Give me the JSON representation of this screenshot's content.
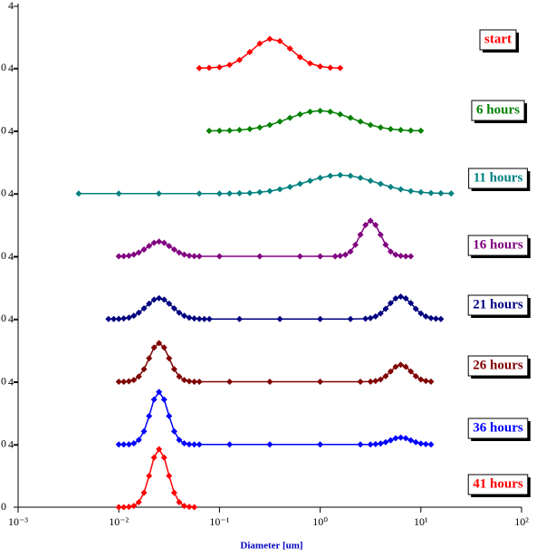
{
  "chart_data": {
    "type": "line",
    "xlabel": "Diameter [um]",
    "xscale": "log",
    "xlim": [
      0.001,
      100
    ],
    "xticks": [
      {
        "value": 0.001,
        "label": "10⁻³"
      },
      {
        "value": 0.01,
        "label": "10⁻²"
      },
      {
        "value": 0.1,
        "label": "10⁻¹"
      },
      {
        "value": 1,
        "label": "10⁰"
      },
      {
        "value": 10,
        "label": "10¹"
      },
      {
        "value": 100,
        "label": "10²"
      }
    ],
    "series": [
      {
        "name": "start",
        "color": "#ff0000",
        "ylim": [
          0,
          4
        ],
        "yticks": [
          0,
          4
        ],
        "x": [
          0.063,
          0.079,
          0.1,
          0.126,
          0.158,
          0.2,
          0.251,
          0.316,
          0.398,
          0.501,
          0.631,
          0.794,
          1,
          1.26,
          1.58
        ],
        "values": [
          0.0,
          0.02,
          0.06,
          0.21,
          0.53,
          1.04,
          1.59,
          1.89,
          1.75,
          1.27,
          0.71,
          0.31,
          0.11,
          0.03,
          0.01
        ]
      },
      {
        "name": "6 hours",
        "color": "#008000",
        "ylim": [
          0,
          4
        ],
        "yticks": [
          0,
          4
        ],
        "x": [
          0.079,
          0.1,
          0.126,
          0.158,
          0.2,
          0.251,
          0.316,
          0.398,
          0.501,
          0.631,
          0.794,
          1,
          1.26,
          1.58,
          2,
          2.51,
          3.16,
          3.98,
          5.01,
          6.31,
          7.94,
          10
        ],
        "values": [
          0.0,
          0.01,
          0.02,
          0.06,
          0.12,
          0.22,
          0.38,
          0.6,
          0.84,
          1.07,
          1.24,
          1.3,
          1.24,
          1.07,
          0.84,
          0.6,
          0.38,
          0.22,
          0.12,
          0.06,
          0.02,
          0.01
        ]
      },
      {
        "name": "11 hours",
        "color": "#008080",
        "ylim": [
          0,
          4
        ],
        "yticks": [
          0,
          4
        ],
        "x": [
          0.004,
          0.01,
          0.025,
          0.063,
          0.1,
          0.126,
          0.158,
          0.2,
          0.251,
          0.316,
          0.398,
          0.501,
          0.631,
          0.794,
          1,
          1.26,
          1.58,
          2,
          2.51,
          3.16,
          3.98,
          5.01,
          6.31,
          7.94,
          10,
          12.6,
          15.8,
          20
        ],
        "values": [
          0.0,
          0.0,
          0.0,
          0.0,
          0.0,
          0.01,
          0.02,
          0.04,
          0.09,
          0.16,
          0.28,
          0.43,
          0.63,
          0.83,
          1.02,
          1.15,
          1.2,
          1.15,
          1.02,
          0.83,
          0.63,
          0.43,
          0.28,
          0.16,
          0.09,
          0.04,
          0.02,
          0.01
        ]
      },
      {
        "name": "16 hours",
        "color": "#800080",
        "ylim": [
          0,
          4
        ],
        "yticks": [
          0,
          4
        ],
        "x": [
          0.01,
          0.0112,
          0.0126,
          0.0141,
          0.0158,
          0.0178,
          0.02,
          0.0224,
          0.0251,
          0.0282,
          0.0316,
          0.0355,
          0.0398,
          0.0447,
          0.0501,
          0.0562,
          0.0631,
          0.1,
          0.251,
          0.631,
          1,
          1.41,
          1.58,
          1.78,
          2.0,
          2.24,
          2.51,
          2.82,
          3.16,
          3.55,
          3.98,
          4.47,
          5.01,
          5.62,
          6.31,
          7.08,
          7.94
        ],
        "values": [
          0.0,
          0.01,
          0.04,
          0.11,
          0.24,
          0.44,
          0.67,
          0.87,
          0.95,
          0.87,
          0.67,
          0.44,
          0.24,
          0.11,
          0.04,
          0.01,
          0.0,
          0.0,
          0.0,
          0.0,
          0.0,
          0.0,
          0.03,
          0.1,
          0.31,
          0.75,
          1.4,
          2.03,
          2.3,
          2.03,
          1.4,
          0.75,
          0.31,
          0.1,
          0.03,
          0.0,
          0.0
        ]
      },
      {
        "name": "21 hours",
        "color": "#000080",
        "ylim": [
          0,
          4
        ],
        "yticks": [
          0,
          4
        ],
        "x": [
          0.0079,
          0.0089,
          0.01,
          0.0112,
          0.0126,
          0.0141,
          0.0158,
          0.0178,
          0.02,
          0.0224,
          0.0251,
          0.0282,
          0.0316,
          0.0355,
          0.0398,
          0.0447,
          0.0501,
          0.0562,
          0.0631,
          0.0708,
          0.0794,
          0.158,
          0.398,
          1,
          2.0,
          2.82,
          3.16,
          3.55,
          3.98,
          4.47,
          5.01,
          5.62,
          6.31,
          7.08,
          7.94,
          8.91,
          10,
          11.2,
          12.6,
          14.1,
          15.8
        ],
        "values": [
          0.0,
          0.0,
          0.01,
          0.04,
          0.09,
          0.21,
          0.41,
          0.69,
          1.0,
          1.25,
          1.35,
          1.25,
          1.0,
          0.69,
          0.41,
          0.21,
          0.09,
          0.04,
          0.01,
          0.0,
          0.0,
          0.0,
          0.0,
          0.0,
          0.0,
          0.02,
          0.06,
          0.17,
          0.36,
          0.66,
          1.03,
          1.33,
          1.45,
          1.33,
          1.03,
          0.66,
          0.36,
          0.17,
          0.06,
          0.02,
          0.0
        ]
      },
      {
        "name": "26 hours",
        "color": "#800000",
        "ylim": [
          0,
          4
        ],
        "yticks": [
          0,
          4
        ],
        "x": [
          0.01,
          0.0112,
          0.0126,
          0.0141,
          0.0158,
          0.0178,
          0.02,
          0.0224,
          0.0251,
          0.0282,
          0.0316,
          0.0355,
          0.0398,
          0.0447,
          0.0501,
          0.0562,
          0.0631,
          0.126,
          0.316,
          1,
          2.51,
          3.16,
          3.55,
          3.98,
          4.47,
          5.01,
          5.62,
          6.31,
          7.08,
          7.94,
          8.91,
          10,
          11.2,
          12.6
        ],
        "values": [
          0.0,
          0.0,
          0.03,
          0.11,
          0.34,
          0.81,
          1.52,
          2.21,
          2.5,
          2.21,
          1.52,
          0.81,
          0.34,
          0.11,
          0.03,
          0.0,
          0.0,
          0.0,
          0.0,
          0.0,
          0.0,
          0.01,
          0.05,
          0.15,
          0.36,
          0.67,
          0.97,
          1.1,
          0.97,
          0.67,
          0.36,
          0.15,
          0.05,
          0.01
        ]
      },
      {
        "name": "36 hours",
        "color": "#0000ff",
        "ylim": [
          0,
          4
        ],
        "yticks": [
          0,
          4
        ],
        "x": [
          0.01,
          0.0112,
          0.0126,
          0.0141,
          0.0158,
          0.0178,
          0.02,
          0.0224,
          0.0251,
          0.0282,
          0.0316,
          0.0355,
          0.0398,
          0.0447,
          0.0501,
          0.0562,
          0.0631,
          0.126,
          0.316,
          1,
          2.51,
          3.16,
          3.55,
          3.98,
          4.47,
          5.01,
          5.62,
          6.31,
          7.08,
          7.94,
          8.91,
          10,
          11.2,
          12.6
        ],
        "values": [
          0.0,
          0.0,
          0.01,
          0.07,
          0.29,
          0.85,
          1.84,
          2.91,
          3.4,
          2.91,
          1.84,
          0.85,
          0.29,
          0.07,
          0.01,
          0.0,
          0.0,
          0.0,
          0.0,
          0.0,
          0.0,
          0.0,
          0.02,
          0.06,
          0.15,
          0.27,
          0.4,
          0.45,
          0.4,
          0.27,
          0.15,
          0.06,
          0.02,
          0.0
        ]
      },
      {
        "name": "41 hours",
        "color": "#ff0000",
        "ylim": [
          0,
          4
        ],
        "yticks": [
          0,
          4
        ],
        "x": [
          0.01,
          0.0112,
          0.0126,
          0.0141,
          0.0158,
          0.0178,
          0.02,
          0.0224,
          0.0251,
          0.0282,
          0.0316,
          0.0355,
          0.0398,
          0.0447,
          0.0501,
          0.0562
        ],
        "values": [
          0.0,
          0.0,
          0.02,
          0.08,
          0.32,
          0.94,
          2.03,
          3.21,
          3.75,
          3.21,
          2.03,
          0.94,
          0.32,
          0.08,
          0.02,
          0.0
        ]
      }
    ]
  }
}
